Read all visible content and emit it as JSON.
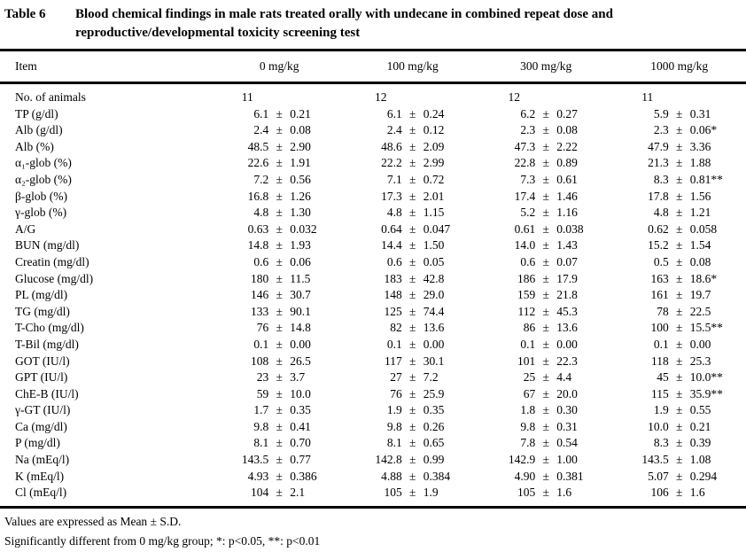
{
  "page": {
    "title_tag": "Table 6",
    "title_lines": [
      "Blood chemical findings in male rats treated orally with undecane in combined repeat dose and",
      "reproductive/developmental toxicity screening test"
    ]
  },
  "table": {
    "columns": [
      "Item",
      "0 mg/kg",
      "100 mg/kg",
      "300 mg/kg",
      "1000 mg/kg"
    ],
    "rows": [
      {
        "item": "No. of animals",
        "values": [
          "11",
          "12",
          "12",
          "11"
        ]
      },
      {
        "item": "TP (g/dl)",
        "values": [
          "6.1 ± 0.21",
          "6.1 ± 0.24",
          "6.2 ± 0.27",
          "5.9 ± 0.31"
        ]
      },
      {
        "item": "Alb (g/dl)",
        "values": [
          "2.4 ± 0.08",
          "2.4 ± 0.12",
          "2.3 ± 0.08",
          "2.3 ± 0.06*"
        ]
      },
      {
        "item": "Alb (%)",
        "values": [
          "48.5 ± 2.90",
          "48.6 ± 2.09",
          "47.3 ± 2.22",
          "47.9 ± 3.36"
        ]
      },
      {
        "item": "α₁-glob (%)",
        "values": [
          "22.6 ± 1.91",
          "22.2 ± 2.99",
          "22.8 ± 0.89",
          "21.3 ± 1.88"
        ]
      },
      {
        "item": "α₂-glob (%)",
        "values": [
          "7.2 ± 0.56",
          "7.1 ± 0.72",
          "7.3 ± 0.61",
          "8.3 ± 0.81**"
        ]
      },
      {
        "item": "β-glob (%)",
        "values": [
          "16.8 ± 1.26",
          "17.3 ± 2.01",
          "17.4 ± 1.46",
          "17.8 ± 1.56"
        ]
      },
      {
        "item": "γ-glob (%)",
        "values": [
          "4.8 ± 1.30",
          "4.8 ± 1.15",
          "5.2 ± 1.16",
          "4.8 ± 1.21"
        ]
      },
      {
        "item": "A/G",
        "values": [
          "0.63 ± 0.032",
          "0.64 ± 0.047",
          "0.61 ± 0.038",
          "0.62 ± 0.058"
        ]
      },
      {
        "item": "BUN (mg/dl)",
        "values": [
          "14.8 ± 1.93",
          "14.4 ± 1.50",
          "14.0 ± 1.43",
          "15.2 ± 1.54"
        ]
      },
      {
        "item": "Creatin (mg/dl)",
        "values": [
          "0.6 ± 0.06",
          "0.6 ± 0.05",
          "0.6 ± 0.07",
          "0.5 ± 0.08"
        ]
      },
      {
        "item": "Glucose (mg/dl)",
        "values": [
          "180 ± 11.5",
          "183 ± 42.8",
          "186 ± 17.9",
          "163 ± 18.6*"
        ]
      },
      {
        "item": "PL (mg/dl)",
        "values": [
          "146 ± 30.7",
          "148 ± 29.0",
          "159 ± 21.8",
          "161 ± 19.7"
        ]
      },
      {
        "item": "TG (mg/dl)",
        "values": [
          "133 ± 90.1",
          "125 ± 74.4",
          "112 ± 45.3",
          "78 ± 22.5"
        ]
      },
      {
        "item": "T-Cho (mg/dl)",
        "values": [
          "76 ± 14.8",
          "82 ± 13.6",
          "86 ± 13.6",
          "100 ± 15.5**"
        ]
      },
      {
        "item": "T-Bil (mg/dl)",
        "values": [
          "0.1 ± 0.00",
          "0.1 ± 0.00",
          "0.1 ± 0.00",
          "0.1 ± 0.00"
        ]
      },
      {
        "item": "GOT (IU/l)",
        "values": [
          "108 ± 26.5",
          "117 ± 30.1",
          "101 ± 22.3",
          "118 ± 25.3"
        ]
      },
      {
        "item": "GPT (IU/l)",
        "values": [
          "23 ± 3.7",
          "27 ± 7.2",
          "25 ± 4.4",
          "45 ± 10.0**"
        ]
      },
      {
        "item": "ChE-B (IU/l)",
        "values": [
          "59 ± 10.0",
          "76 ± 25.9",
          "67 ± 20.0",
          "115 ± 35.9**"
        ]
      },
      {
        "item": "γ-GT (IU/l)",
        "values": [
          "1.7 ± 0.35",
          "1.9 ± 0.35",
          "1.8 ± 0.30",
          "1.9 ± 0.55"
        ]
      },
      {
        "item": "Ca (mg/dl)",
        "values": [
          "9.8 ± 0.41",
          "9.8 ± 0.26",
          "9.8 ± 0.31",
          "10.0 ± 0.21"
        ]
      },
      {
        "item": "P (mg/dl)",
        "values": [
          "8.1 ± 0.70",
          "8.1 ± 0.65",
          "7.8 ± 0.54",
          "8.3 ± 0.39"
        ]
      },
      {
        "item": "Na (mEq/l)",
        "values": [
          "143.5 ± 0.77",
          "142.8 ± 0.99",
          "142.9 ± 1.00",
          "143.5 ± 1.08"
        ]
      },
      {
        "item": "K (mEq/l)",
        "values": [
          "4.93 ± 0.386",
          "4.88 ± 0.384",
          "4.90 ± 0.381",
          "5.07 ± 0.294"
        ]
      },
      {
        "item": "Cl (mEq/l)",
        "values": [
          "104 ± 2.1",
          "105 ± 1.9",
          "105 ± 1.6",
          "106 ± 1.6"
        ]
      }
    ]
  },
  "footnotes": [
    "Values are expressed as Mean ± S.D.",
    "Significantly different from 0 mg/kg group;  *: p<0.05, **: p<0.01"
  ]
}
